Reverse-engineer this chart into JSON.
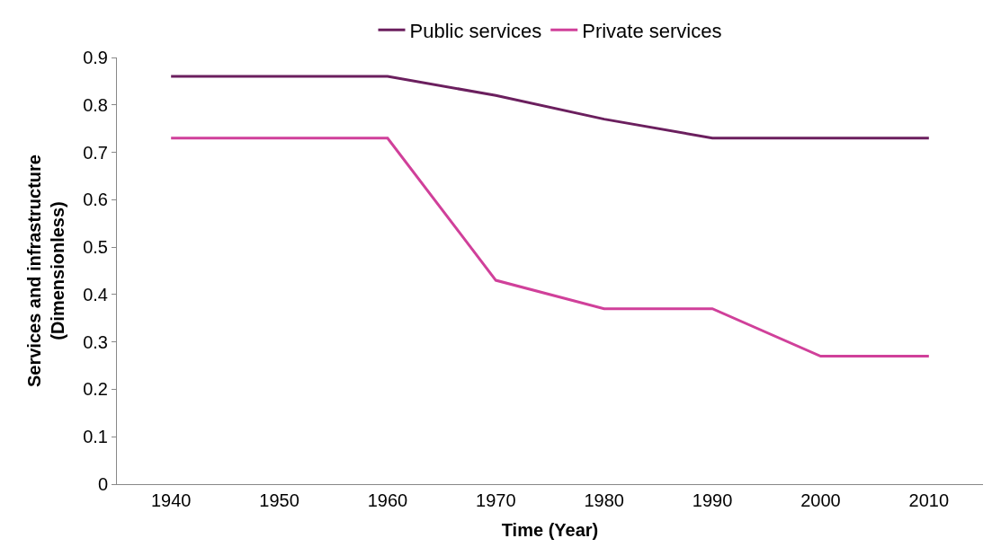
{
  "chart_data": {
    "type": "line",
    "xlabel": "Time (Year)",
    "ylabel": "Services and infrastructure\n(Dimensionless)",
    "categories": [
      "1940",
      "1950",
      "1960",
      "1970",
      "1980",
      "1990",
      "2000",
      "2010"
    ],
    "series": [
      {
        "name": "Public services",
        "color": "#6b1f5e",
        "values": [
          0.86,
          0.86,
          0.86,
          0.82,
          0.77,
          0.73,
          0.73,
          0.73
        ]
      },
      {
        "name": "Private services",
        "color": "#d0409a",
        "values": [
          0.73,
          0.73,
          0.73,
          0.43,
          0.37,
          0.37,
          0.27,
          0.27
        ]
      }
    ],
    "ylim": [
      0,
      0.9
    ],
    "yticks": [
      0,
      0.1,
      0.2,
      0.3,
      0.4,
      0.5,
      0.6,
      0.7,
      0.8,
      0.9
    ],
    "legend": "top",
    "marker": "none",
    "line_style": "solid"
  }
}
